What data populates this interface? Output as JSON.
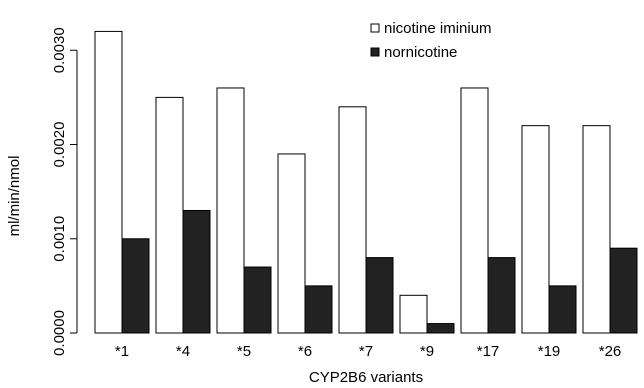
{
  "chart_data": {
    "type": "bar",
    "title": "",
    "xlabel": "CYP2B6 variants",
    "ylabel": "ml/min/nmol",
    "categories": [
      "*1",
      "*4",
      "*5",
      "*6",
      "*7",
      "*9",
      "*17",
      "*19",
      "*26"
    ],
    "series": [
      {
        "name": "nicotine iminium",
        "color": "#ffffff",
        "values": [
          0.0032,
          0.0025,
          0.0026,
          0.0019,
          0.0024,
          0.0004,
          0.0026,
          0.0022,
          0.0022
        ]
      },
      {
        "name": "nornicotine",
        "color": "#222222",
        "values": [
          0.001,
          0.0013,
          0.0007,
          0.0005,
          0.0008,
          0.0001,
          0.0008,
          0.0005,
          0.0009
        ]
      }
    ],
    "ylim": [
      0,
      0.0033
    ],
    "yticks": [
      "0.0000",
      "0.0010",
      "0.0020",
      "0.0030"
    ],
    "grid": false,
    "legend_position": "top-right"
  }
}
